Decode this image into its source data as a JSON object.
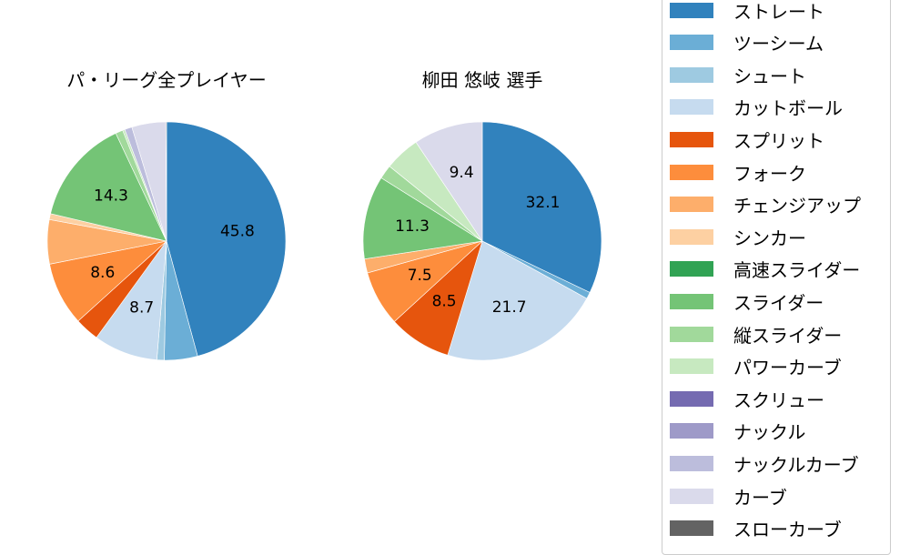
{
  "chart_data": [
    {
      "type": "pie",
      "title": "パ・リーグ全プレイヤー",
      "categories": [
        "ストレート",
        "ツーシーム",
        "シュート",
        "カットボール",
        "スプリット",
        "フォーク",
        "チェンジアップ",
        "シンカー",
        "スライダー",
        "縦スライダー",
        "パワーカーブ",
        "ナックルカーブ",
        "カーブ",
        "スローカーブ"
      ],
      "values": [
        45.8,
        4.5,
        1.0,
        8.7,
        3.3,
        8.6,
        6.0,
        0.8,
        14.3,
        1.0,
        0.3,
        1.0,
        4.6,
        0.1
      ],
      "labels_shown": [
        "45.8",
        "8.7",
        "8.6",
        "14.3"
      ]
    },
    {
      "type": "pie",
      "title": "柳田 悠岐  選手",
      "categories": [
        "ストレート",
        "ツーシーム",
        "カットボール",
        "スプリット",
        "フォーク",
        "チェンジアップ",
        "スライダー",
        "縦スライダー",
        "パワーカーブ",
        "カーブ"
      ],
      "values": [
        32.1,
        0.9,
        21.7,
        8.5,
        7.5,
        1.9,
        11.3,
        1.9,
        4.8,
        9.4
      ],
      "labels_shown": [
        "32.1",
        "21.7",
        "8.5",
        "7.5",
        "11.3",
        "9.4"
      ]
    }
  ],
  "titles": {
    "left": "パ・リーグ全プレイヤー",
    "right": "柳田 悠岐  選手"
  },
  "legend": [
    {
      "label": "ストレート",
      "color": "#3182bd"
    },
    {
      "label": "ツーシーム",
      "color": "#6baed6"
    },
    {
      "label": "シュート",
      "color": "#9ecae1"
    },
    {
      "label": "カットボール",
      "color": "#c6dbef"
    },
    {
      "label": "スプリット",
      "color": "#e6550d"
    },
    {
      "label": "フォーク",
      "color": "#fd8d3c"
    },
    {
      "label": "チェンジアップ",
      "color": "#fdae6b"
    },
    {
      "label": "シンカー",
      "color": "#fdd0a2"
    },
    {
      "label": "高速スライダー",
      "color": "#31a354"
    },
    {
      "label": "スライダー",
      "color": "#74c476"
    },
    {
      "label": "縦スライダー",
      "color": "#a1d99b"
    },
    {
      "label": "パワーカーブ",
      "color": "#c7e9c0"
    },
    {
      "label": "スクリュー",
      "color": "#756bb1"
    },
    {
      "label": "ナックル",
      "color": "#9e9ac8"
    },
    {
      "label": "ナックルカーブ",
      "color": "#bcbddc"
    },
    {
      "label": "カーブ",
      "color": "#dadaeb"
    },
    {
      "label": "スローカーブ",
      "color": "#636363"
    }
  ]
}
